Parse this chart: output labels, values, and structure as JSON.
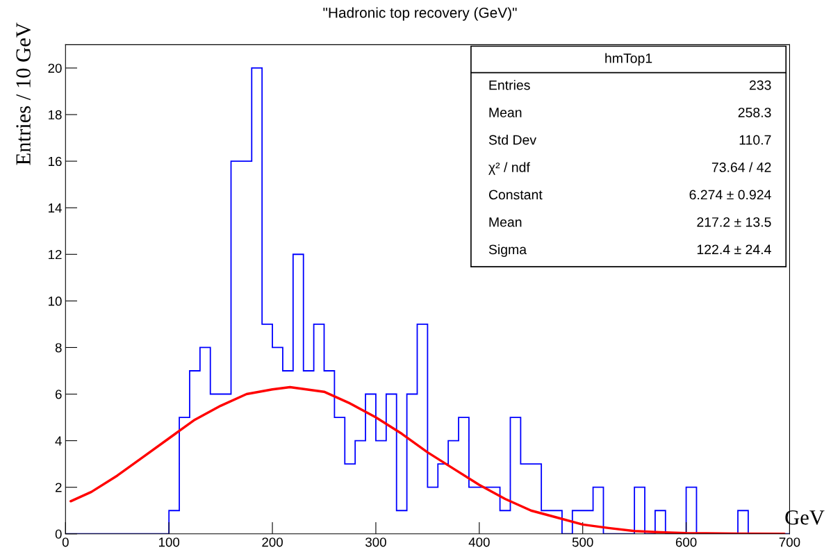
{
  "chart_data": {
    "type": "histogram",
    "title": "\"Hadronic top recovery (GeV)\"",
    "xlabel": "GeV",
    "ylabel": "Entries / 10 GeV",
    "bins": [
      0,
      10,
      20,
      30,
      40,
      50,
      60,
      70,
      80,
      90,
      100,
      110,
      120,
      130,
      140,
      150,
      160,
      170,
      180,
      190,
      200,
      210,
      220,
      230,
      240,
      250,
      260,
      270,
      280,
      290,
      300,
      310,
      320,
      330,
      340,
      350,
      360,
      370,
      380,
      390,
      400,
      410,
      420,
      430,
      440,
      450,
      460,
      470,
      480,
      490,
      500,
      510,
      520,
      530,
      540,
      550,
      560,
      570,
      580,
      590,
      600,
      610,
      620,
      630,
      640,
      650,
      660,
      670,
      680,
      690,
      700
    ],
    "series": [
      {
        "color": "#0000ff",
        "values": [
          0,
          0,
          0,
          0,
          0,
          0,
          0,
          0,
          0,
          0,
          1,
          5,
          7,
          8,
          6,
          6,
          16,
          16,
          20,
          9,
          8,
          7,
          12,
          7,
          9,
          7,
          5,
          3,
          4,
          6,
          4,
          6,
          1,
          6,
          9,
          2,
          3,
          4,
          5,
          2,
          2,
          2,
          1,
          5,
          3,
          3,
          1,
          1,
          0,
          1,
          1,
          2,
          0,
          0,
          0,
          2,
          0,
          1,
          0,
          0,
          2,
          0,
          0,
          0,
          0,
          1,
          0,
          0,
          0,
          0
        ]
      },
      {
        "type": "line",
        "color": "#ff0000",
        "x": [
          5,
          25,
          50,
          75,
          100,
          125,
          150,
          175,
          200,
          217,
          250,
          275,
          300,
          325,
          350,
          375,
          400,
          425,
          450,
          475,
          500,
          525,
          550,
          575,
          600,
          650,
          695
        ],
        "values": [
          1.4,
          1.8,
          2.5,
          3.3,
          4.1,
          4.9,
          5.5,
          6.0,
          6.2,
          6.3,
          6.1,
          5.6,
          5.0,
          4.3,
          3.5,
          2.8,
          2.1,
          1.5,
          1.0,
          0.7,
          0.4,
          0.25,
          0.12,
          0.07,
          0.03,
          0.01,
          0.0
        ]
      }
    ],
    "xlim": [
      0,
      700
    ],
    "xticks": [
      0,
      100,
      200,
      300,
      400,
      500,
      600,
      700
    ],
    "ylim": [
      0,
      21
    ],
    "yticks": [
      0,
      2,
      4,
      6,
      8,
      10,
      12,
      14,
      16,
      18,
      20
    ],
    "grid": false,
    "legend": false,
    "annotations": [
      "hmTop1",
      "Entries",
      "233",
      "Mean",
      "258.3",
      "Std Dev",
      "110.7",
      "χ² / ndf",
      "73.64 / 42",
      "Constant",
      "6.274 ± 0.924",
      "Mean",
      "217.2 ± 13.5",
      "Sigma",
      "122.4 ± 24.4"
    ]
  }
}
